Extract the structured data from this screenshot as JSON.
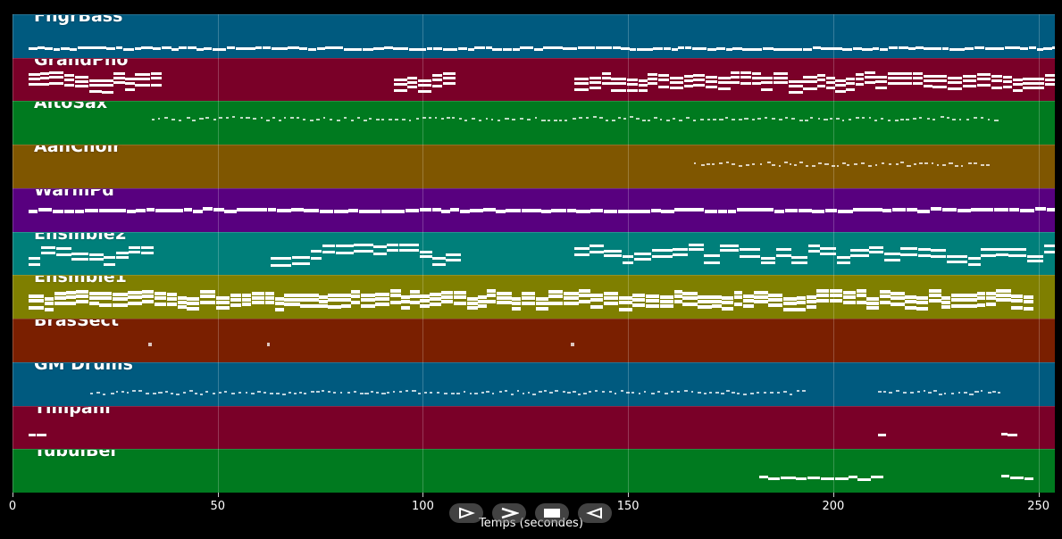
{
  "tracks": [
    {
      "name": "FngrBass",
      "color": "#005a7f"
    },
    {
      "name": "GrandPno",
      "color": "#7a0028"
    },
    {
      "name": "AltoSax",
      "color": "#007a1f"
    },
    {
      "name": "AahChoir",
      "color": "#7f5600"
    },
    {
      "name": "WarmPd",
      "color": "#58007f"
    },
    {
      "name": "Ensmble2",
      "color": "#007f7a"
    },
    {
      "name": "Ensmble1",
      "color": "#7f7f00"
    },
    {
      "name": "BrasSect",
      "color": "#7a1f00"
    },
    {
      "name": "GM Drums",
      "color": "#005a7f"
    },
    {
      "name": "Timpani",
      "color": "#7a0028"
    },
    {
      "name": "TubulBel",
      "color": "#007a1f"
    }
  ],
  "axis": {
    "ticks": [
      "0",
      "50",
      "100",
      "150",
      "200",
      "250"
    ],
    "xlabel": "Temps (secondes)",
    "range": [
      0,
      254
    ]
  },
  "controls": [
    {
      "icon": "play-icon"
    },
    {
      "icon": "fast-forward-icon"
    },
    {
      "icon": "stop-icon"
    },
    {
      "icon": "rewind-icon"
    }
  ]
}
